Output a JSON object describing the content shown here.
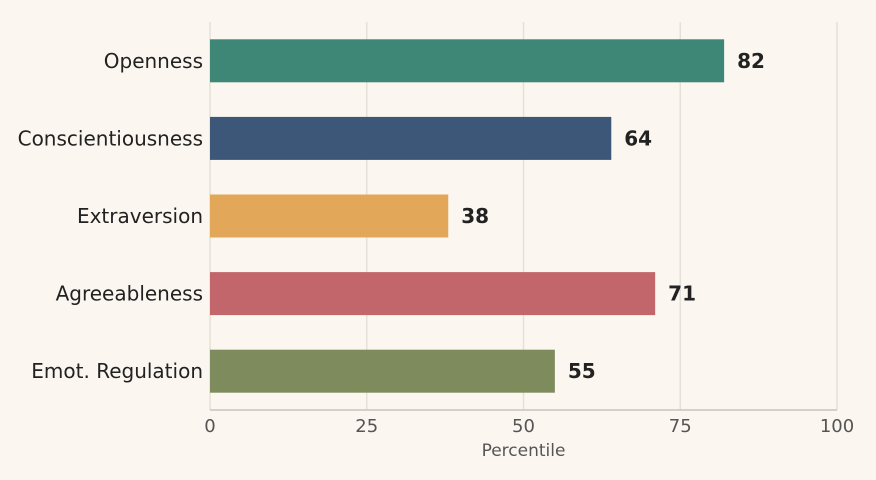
{
  "chart_data": {
    "type": "bar",
    "orientation": "horizontal",
    "categories": [
      "Openness",
      "Conscientiousness",
      "Extraversion",
      "Agreeableness",
      "Emot. Regulation"
    ],
    "values": [
      82,
      64,
      38,
      71,
      55
    ],
    "colors": [
      "#3E8777",
      "#3C5777",
      "#E3A75A",
      "#C2666B",
      "#7E8B5C"
    ],
    "title": "",
    "xlabel": "Percentile",
    "ylabel": "",
    "xlim": [
      0,
      100
    ],
    "xticks": [
      0,
      25,
      50,
      75,
      100
    ],
    "grid": "vertical",
    "legend": "none",
    "background": "#FBF7F0"
  }
}
